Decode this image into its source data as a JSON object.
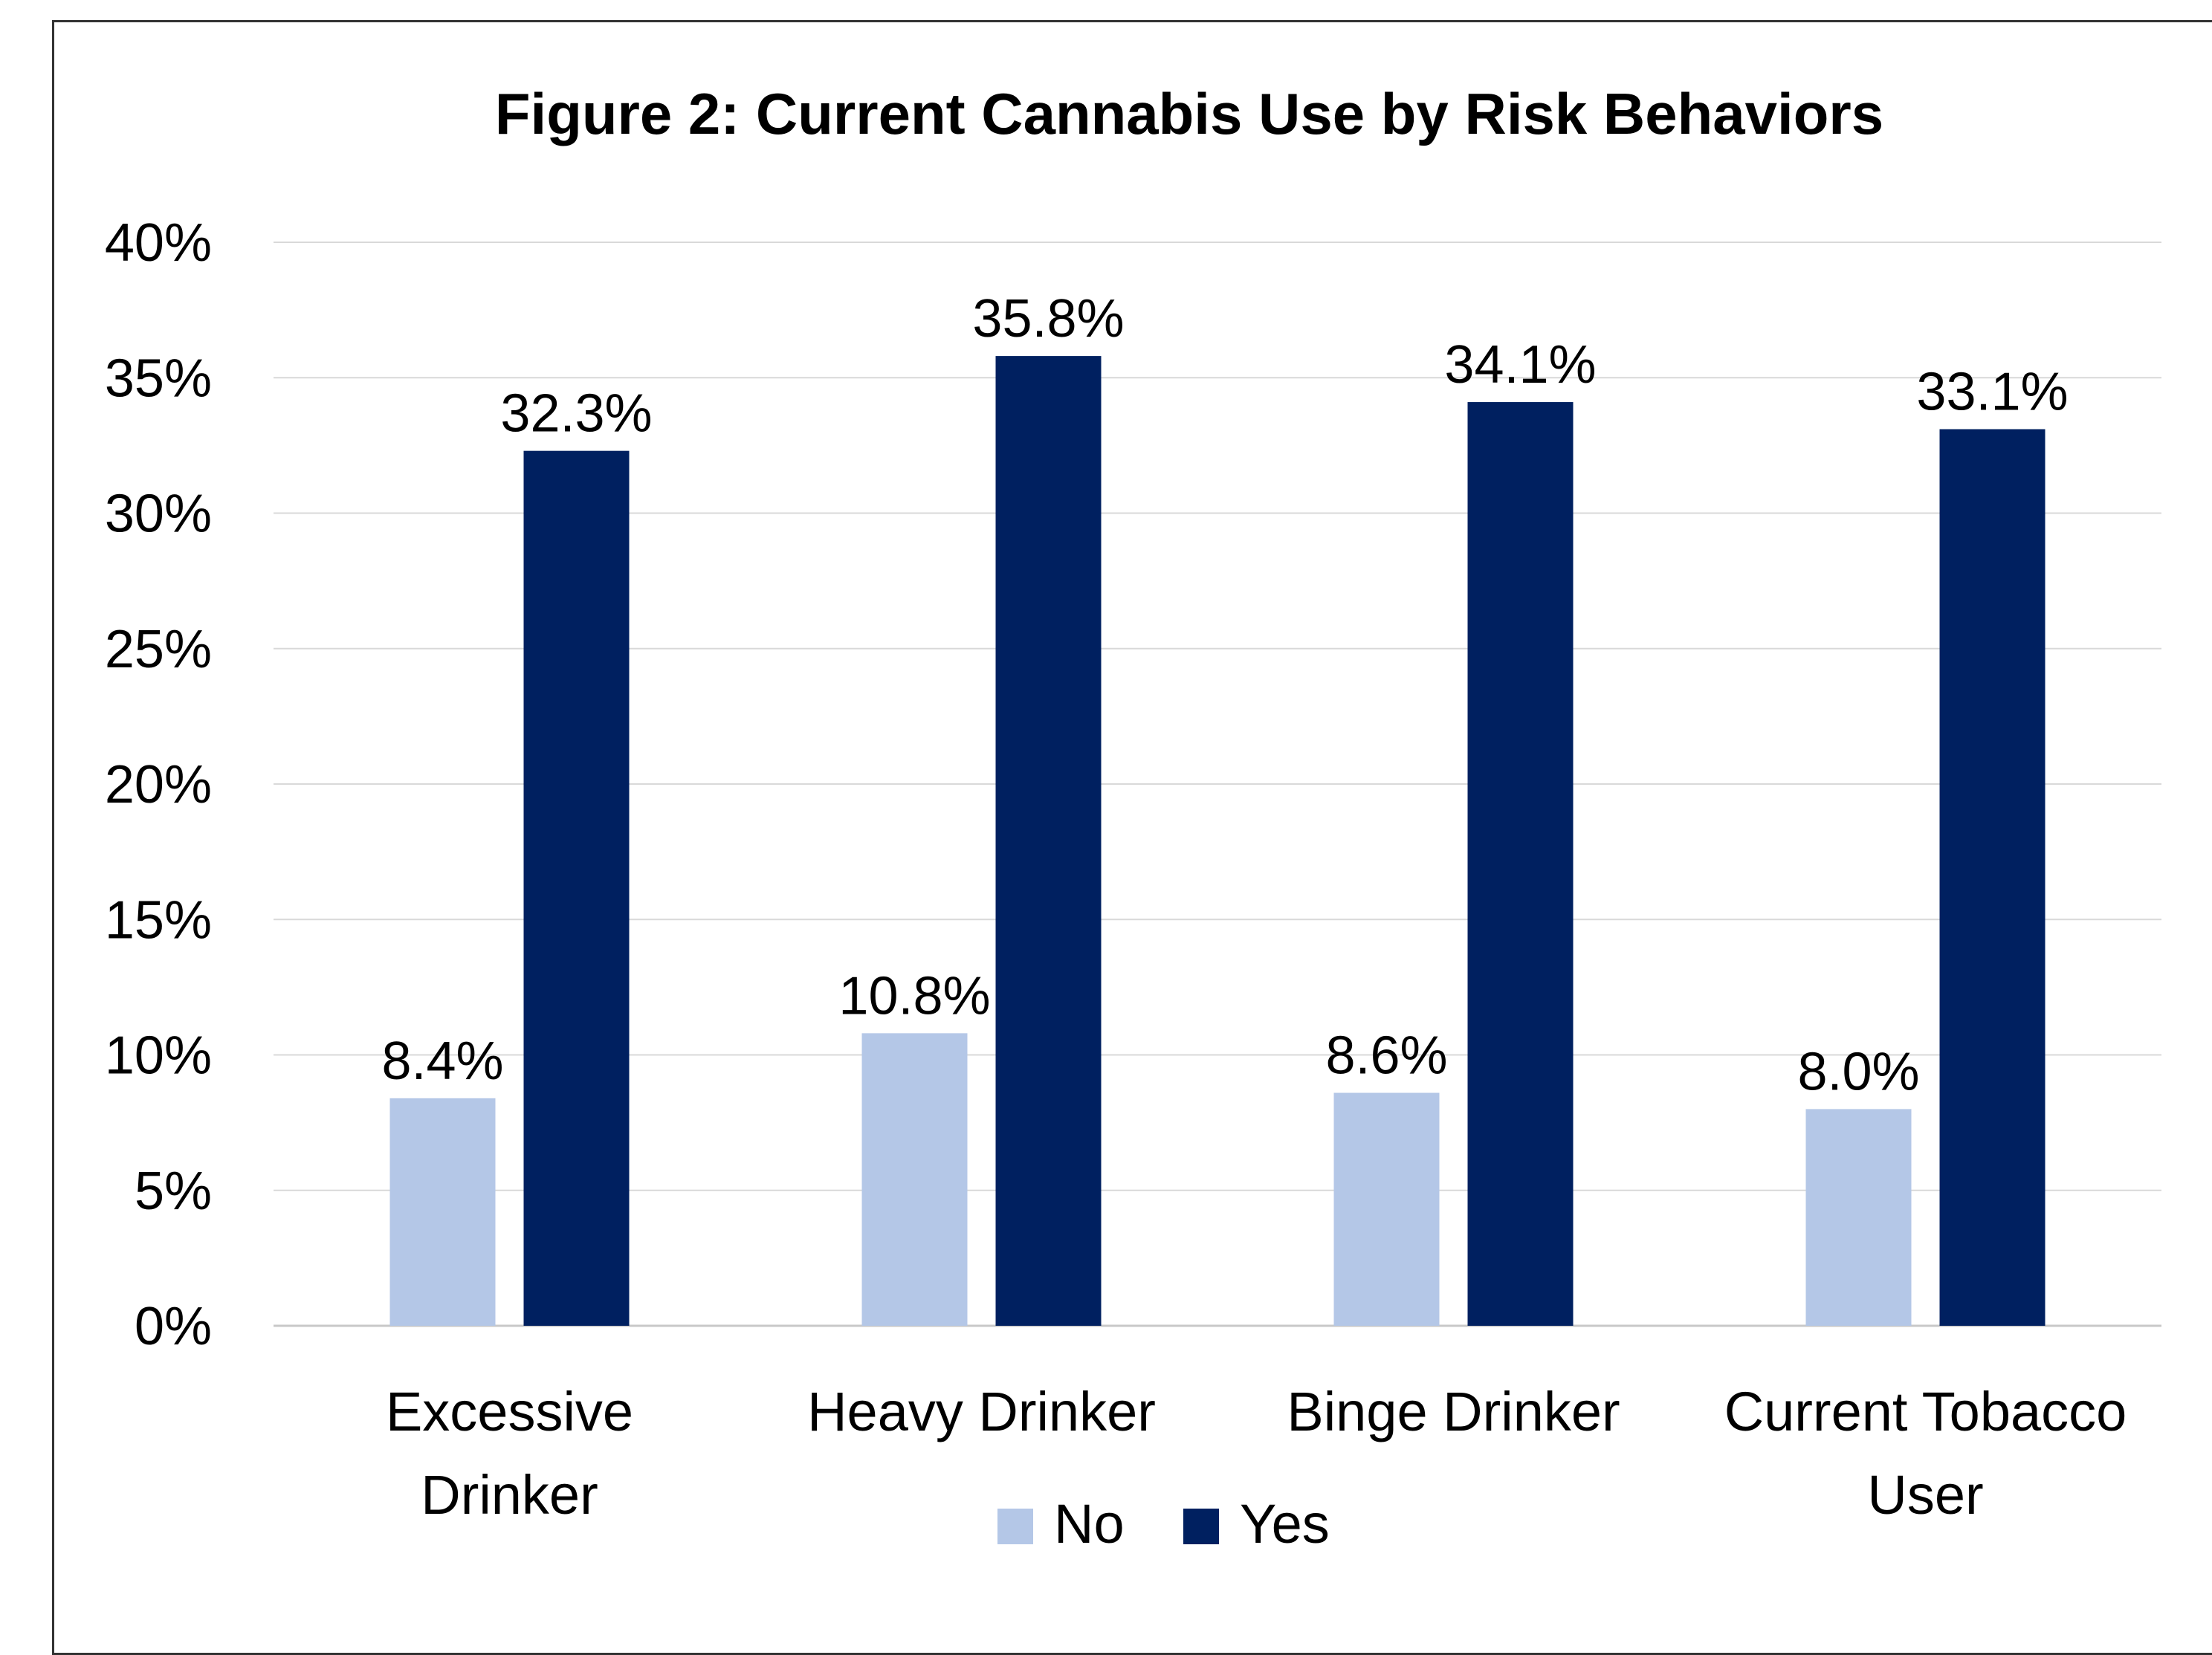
{
  "chart_data": {
    "type": "bar",
    "title": "Figure 2: Current Cannabis Use by Risk Behaviors",
    "categories": [
      [
        "Excessive",
        "Drinker"
      ],
      [
        "Heavy Drinker"
      ],
      [
        "Binge Drinker"
      ],
      [
        "Current Tobacco",
        "User"
      ]
    ],
    "series": [
      {
        "name": "No",
        "color": "#b4c7e7",
        "values": [
          8.4,
          10.8,
          8.6,
          8.0
        ],
        "labels": [
          "8.4%",
          "10.8%",
          "8.6%",
          "8.0%"
        ]
      },
      {
        "name": "Yes",
        "color": "#002060",
        "values": [
          32.3,
          35.8,
          34.1,
          33.1
        ],
        "labels": [
          "32.3%",
          "35.8%",
          "34.1%",
          "33.1%"
        ]
      }
    ],
    "ylim": [
      0,
      40
    ],
    "yticks": [
      0,
      5,
      10,
      15,
      20,
      25,
      30,
      35,
      40
    ],
    "ytick_labels": [
      "0%",
      "5%",
      "10%",
      "15%",
      "20%",
      "25%",
      "30%",
      "35%",
      "40%"
    ],
    "grid": true,
    "legend": "bottom",
    "xlabel": "",
    "ylabel": ""
  }
}
